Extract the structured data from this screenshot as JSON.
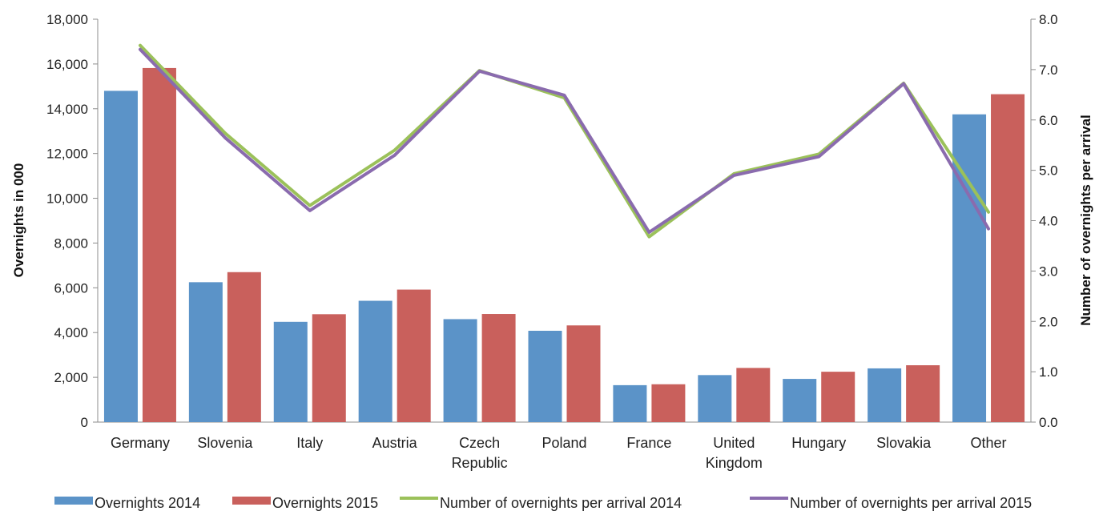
{
  "chart_data": {
    "type": "bar",
    "categories": [
      [
        "Germany"
      ],
      [
        "Slovenia"
      ],
      [
        "Italy"
      ],
      [
        "Austria"
      ],
      [
        "Czech",
        "Republic"
      ],
      [
        "Poland"
      ],
      [
        "France"
      ],
      [
        "United",
        "Kingdom"
      ],
      [
        "Hungary"
      ],
      [
        "Slovakia"
      ],
      [
        "Other"
      ]
    ],
    "series": [
      {
        "name": "Overnights 2014",
        "type": "bar",
        "axis": "left",
        "color": "#5b93c8",
        "values": [
          14800,
          6250,
          4480,
          5420,
          4600,
          4080,
          1650,
          2100,
          1930,
          2400,
          13750
        ]
      },
      {
        "name": "Overnights 2015",
        "type": "bar",
        "axis": "left",
        "color": "#c9605c",
        "values": [
          15820,
          6700,
          4820,
          5920,
          4830,
          4320,
          1690,
          2420,
          2250,
          2540,
          14650
        ]
      },
      {
        "name": "Number of overnights per arrival 2014",
        "type": "line",
        "axis": "right",
        "color": "#9bc15a",
        "values": [
          7.48,
          5.74,
          4.3,
          5.4,
          6.98,
          6.44,
          3.68,
          4.93,
          5.32,
          6.73,
          4.17
        ]
      },
      {
        "name": "Number of overnights per arrival 2015",
        "type": "line",
        "axis": "right",
        "color": "#8a6bae",
        "values": [
          7.4,
          5.65,
          4.2,
          5.3,
          6.97,
          6.49,
          3.77,
          4.9,
          5.27,
          6.72,
          3.84
        ]
      }
    ],
    "ylabel": "Overnights in 000",
    "y2label": "Number  of overnights per arrival",
    "ylim": [
      0,
      18000
    ],
    "y2lim": [
      0,
      8
    ],
    "yticks": [
      "0",
      "2,000",
      "4,000",
      "6,000",
      "8,000",
      "10,000",
      "12,000",
      "14,000",
      "16,000",
      "18,000"
    ],
    "y2ticks": [
      "0.0",
      "1.0",
      "2.0",
      "3.0",
      "4.0",
      "5.0",
      "6.0",
      "7.0",
      "8.0"
    ],
    "grid": false,
    "legend": "bottom"
  }
}
